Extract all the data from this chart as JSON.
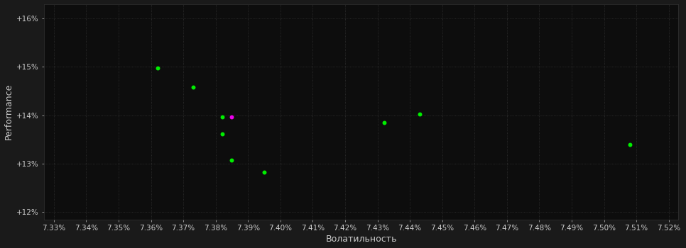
{
  "background_color": "#1a1a1a",
  "plot_bg_color": "#0d0d0d",
  "grid_color": "#333333",
  "xlabel": "Волатильность",
  "ylabel": "Performance",
  "x_min": 7.33,
  "x_max": 7.52,
  "y_min": 12.0,
  "y_max": 16.0,
  "x_ticks": [
    7.33,
    7.34,
    7.35,
    7.36,
    7.37,
    7.38,
    7.39,
    7.4,
    7.41,
    7.42,
    7.43,
    7.44,
    7.45,
    7.46,
    7.47,
    7.48,
    7.49,
    7.5,
    7.51,
    7.52
  ],
  "y_ticks": [
    12.0,
    13.0,
    14.0,
    15.0,
    16.0
  ],
  "green_points": [
    [
      7.362,
      14.97
    ],
    [
      7.373,
      14.58
    ],
    [
      7.382,
      13.97
    ],
    [
      7.382,
      13.62
    ],
    [
      7.385,
      13.07
    ],
    [
      7.432,
      13.85
    ],
    [
      7.443,
      14.02
    ],
    [
      7.395,
      12.82
    ],
    [
      7.508,
      13.4
    ]
  ],
  "magenta_points": [
    [
      7.384,
      13.97
    ]
  ],
  "green_color": "#00ee00",
  "magenta_color": "#ee00ee",
  "dot_size": 18,
  "font_color": "#cccccc",
  "tick_font_size": 7.5,
  "label_font_size": 9
}
